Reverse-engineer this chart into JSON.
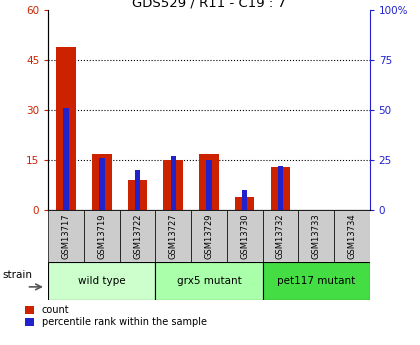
{
  "title": "GDS529 / R11 - C19 : 7",
  "samples": [
    "GSM13717",
    "GSM13719",
    "GSM13722",
    "GSM13727",
    "GSM13729",
    "GSM13730",
    "GSM13732",
    "GSM13733",
    "GSM13734"
  ],
  "count_values": [
    49,
    17,
    9,
    15,
    17,
    4,
    13,
    0,
    0
  ],
  "percentile_values": [
    51,
    26,
    20,
    27,
    25,
    10,
    22,
    0,
    0
  ],
  "left_ylim": [
    0,
    60
  ],
  "right_ylim": [
    0,
    100
  ],
  "left_yticks": [
    0,
    15,
    30,
    45,
    60
  ],
  "right_yticks": [
    0,
    25,
    50,
    75,
    100
  ],
  "right_yticklabels": [
    "0",
    "25",
    "50",
    "75",
    "100%"
  ],
  "bar_width": 0.55,
  "blue_bar_width": 0.15,
  "count_color": "#cc2200",
  "percentile_color": "#2222cc",
  "grid_color": "black",
  "groups": [
    {
      "label": "wild type",
      "indices": [
        0,
        1,
        2
      ],
      "color": "#ccffcc"
    },
    {
      "label": "grx5 mutant",
      "indices": [
        3,
        4,
        5
      ],
      "color": "#aaffaa"
    },
    {
      "label": "pet117 mutant",
      "indices": [
        6,
        7,
        8
      ],
      "color": "#44dd44"
    }
  ],
  "strain_label": "strain",
  "legend_count_label": "count",
  "legend_percentile_label": "percentile rank within the sample",
  "tick_label_color_left": "#cc2200",
  "tick_label_color_right": "#2222cc",
  "plot_bg_color": "#ffffff",
  "sample_label_bg": "#cccccc"
}
